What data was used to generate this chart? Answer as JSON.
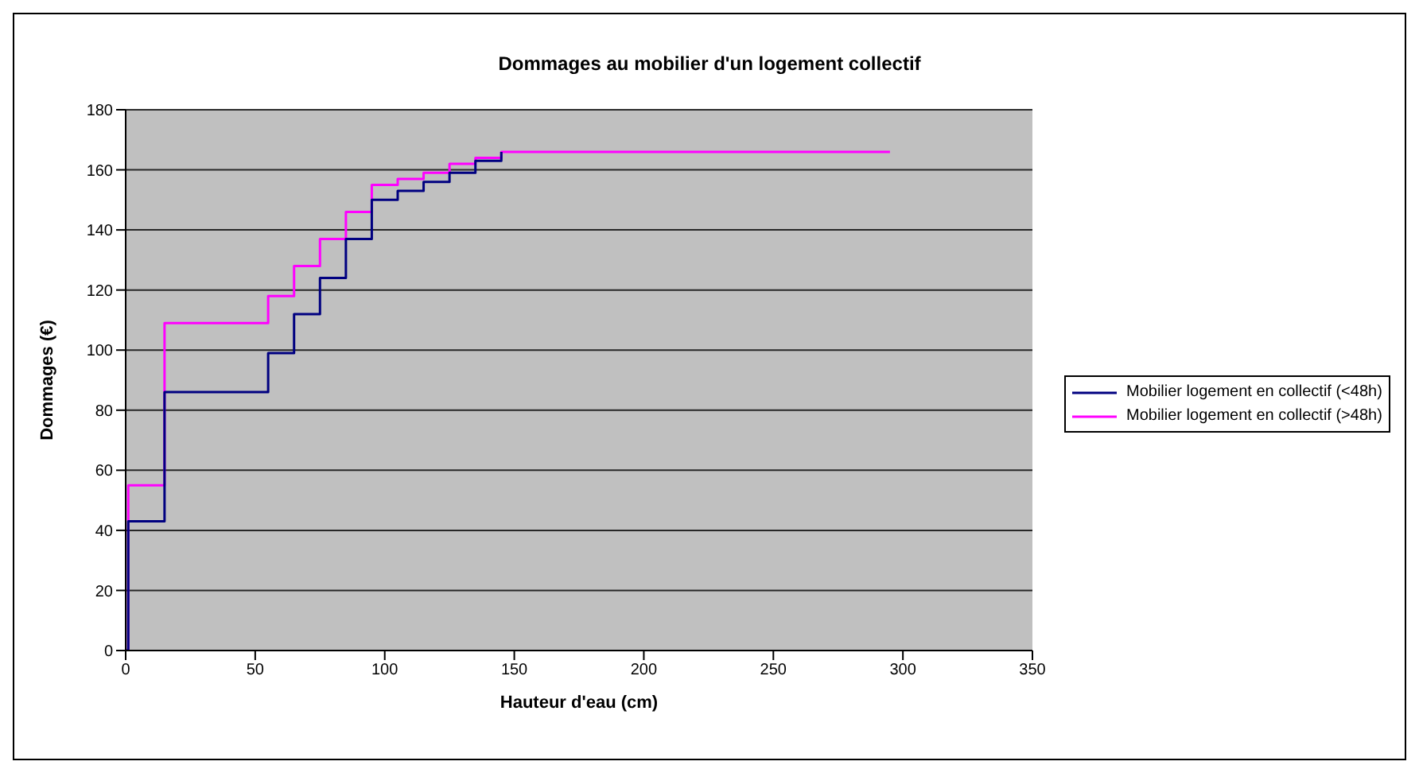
{
  "chart_data": {
    "type": "step",
    "title": "Dommages au mobilier d'un logement collectif",
    "xlabel": "Hauteur d'eau (cm)",
    "ylabel": "Dommages (€)",
    "xlim": [
      0,
      350
    ],
    "xticks": [
      0,
      50,
      100,
      150,
      200,
      250,
      300,
      350
    ],
    "ylim": [
      0,
      180
    ],
    "yticks": [
      0,
      20,
      40,
      60,
      80,
      100,
      120,
      140,
      160,
      180
    ],
    "grid": "y",
    "legend": "right",
    "marker": "none",
    "line_style": "solid",
    "series": [
      {
        "name": "Mobilier logement en collectif  (<48h)",
        "color": "#000080",
        "x": [
          0,
          1,
          15,
          25,
          35,
          45,
          55,
          65,
          75,
          85,
          95,
          105,
          115,
          125,
          135,
          145
        ],
        "values": [
          0,
          43,
          86,
          86,
          86,
          86,
          99,
          112,
          124,
          137,
          150,
          153,
          156,
          159,
          163,
          166
        ]
      },
      {
        "name": "Mobilier logement en collectif  (>48h)",
        "color": "#ff00ff",
        "x": [
          0,
          1,
          15,
          25,
          35,
          45,
          55,
          65,
          75,
          85,
          95,
          105,
          115,
          125,
          135,
          145,
          295
        ],
        "values": [
          0,
          55,
          109,
          109,
          109,
          109,
          118,
          128,
          137,
          146,
          155,
          157,
          159,
          162,
          164,
          166,
          166
        ]
      }
    ]
  }
}
